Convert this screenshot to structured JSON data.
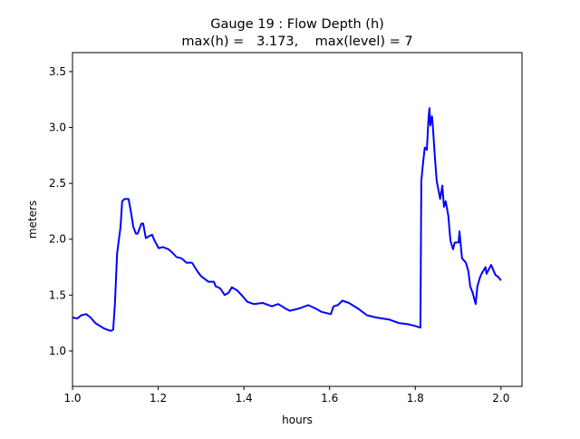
{
  "chart_data": {
    "type": "line",
    "title": "Gauge 19 : Flow Depth (h)",
    "subtitle": "max(h) =   3.173,    max(level) = 7",
    "xlabel": "hours",
    "ylabel": "meters",
    "xlim": [
      1.0,
      2.049
    ],
    "ylim": [
      0.683,
      3.67
    ],
    "xticks": [
      "1.0",
      "1.2",
      "1.4",
      "1.6",
      "1.8",
      "2.0"
    ],
    "yticks": [
      "1.0",
      "1.5",
      "2.0",
      "2.5",
      "3.0",
      "3.5"
    ],
    "grid": false,
    "series": [
      {
        "name": "h",
        "color": "#0000ff",
        "points": [
          [
            1.0,
            1.3
          ],
          [
            1.011,
            1.29
          ],
          [
            1.021,
            1.32
          ],
          [
            1.032,
            1.33
          ],
          [
            1.042,
            1.3
          ],
          [
            1.053,
            1.25
          ],
          [
            1.074,
            1.2
          ],
          [
            1.089,
            1.18
          ],
          [
            1.095,
            1.19
          ],
          [
            1.099,
            1.42
          ],
          [
            1.104,
            1.87
          ],
          [
            1.108,
            1.99
          ],
          [
            1.112,
            2.11
          ],
          [
            1.116,
            2.34
          ],
          [
            1.121,
            2.36
          ],
          [
            1.131,
            2.36
          ],
          [
            1.137,
            2.23
          ],
          [
            1.142,
            2.11
          ],
          [
            1.148,
            2.05
          ],
          [
            1.152,
            2.05
          ],
          [
            1.161,
            2.14
          ],
          [
            1.165,
            2.14
          ],
          [
            1.171,
            2.01
          ],
          [
            1.18,
            2.03
          ],
          [
            1.186,
            2.04
          ],
          [
            1.19,
            2.0
          ],
          [
            1.201,
            1.92
          ],
          [
            1.211,
            1.93
          ],
          [
            1.224,
            1.91
          ],
          [
            1.233,
            1.88
          ],
          [
            1.243,
            1.84
          ],
          [
            1.254,
            1.83
          ],
          [
            1.266,
            1.79
          ],
          [
            1.279,
            1.79
          ],
          [
            1.292,
            1.71
          ],
          [
            1.3,
            1.67
          ],
          [
            1.317,
            1.62
          ],
          [
            1.33,
            1.62
          ],
          [
            1.334,
            1.58
          ],
          [
            1.345,
            1.56
          ],
          [
            1.355,
            1.5
          ],
          [
            1.364,
            1.52
          ],
          [
            1.372,
            1.57
          ],
          [
            1.385,
            1.54
          ],
          [
            1.397,
            1.49
          ],
          [
            1.408,
            1.44
          ],
          [
            1.423,
            1.42
          ],
          [
            1.444,
            1.43
          ],
          [
            1.465,
            1.4
          ],
          [
            1.48,
            1.42
          ],
          [
            1.497,
            1.38
          ],
          [
            1.507,
            1.36
          ],
          [
            1.529,
            1.38
          ],
          [
            1.55,
            1.41
          ],
          [
            1.567,
            1.38
          ],
          [
            1.581,
            1.35
          ],
          [
            1.603,
            1.33
          ],
          [
            1.609,
            1.4
          ],
          [
            1.619,
            1.41
          ],
          [
            1.63,
            1.45
          ],
          [
            1.645,
            1.43
          ],
          [
            1.666,
            1.38
          ],
          [
            1.687,
            1.32
          ],
          [
            1.708,
            1.3
          ],
          [
            1.74,
            1.28
          ],
          [
            1.761,
            1.25
          ],
          [
            1.782,
            1.24
          ],
          [
            1.803,
            1.22
          ],
          [
            1.81,
            1.21
          ],
          [
            1.812,
            1.21
          ],
          [
            1.814,
            2.52
          ],
          [
            1.818,
            2.68
          ],
          [
            1.822,
            2.82
          ],
          [
            1.827,
            2.8
          ],
          [
            1.831,
            3.09
          ],
          [
            1.833,
            3.173
          ],
          [
            1.835,
            3.02
          ],
          [
            1.839,
            3.1
          ],
          [
            1.841,
            3.0
          ],
          [
            1.846,
            2.72
          ],
          [
            1.85,
            2.52
          ],
          [
            1.858,
            2.36
          ],
          [
            1.863,
            2.48
          ],
          [
            1.867,
            2.29
          ],
          [
            1.871,
            2.34
          ],
          [
            1.877,
            2.21
          ],
          [
            1.882,
            1.99
          ],
          [
            1.888,
            1.91
          ],
          [
            1.892,
            1.97
          ],
          [
            1.901,
            1.97
          ],
          [
            1.903,
            2.07
          ],
          [
            1.909,
            1.83
          ],
          [
            1.918,
            1.79
          ],
          [
            1.924,
            1.71
          ],
          [
            1.928,
            1.58
          ],
          [
            1.934,
            1.52
          ],
          [
            1.941,
            1.42
          ],
          [
            1.945,
            1.58
          ],
          [
            1.951,
            1.66
          ],
          [
            1.956,
            1.7
          ],
          [
            1.964,
            1.75
          ],
          [
            1.966,
            1.69
          ],
          [
            1.977,
            1.77
          ],
          [
            1.987,
            1.68
          ],
          [
            1.994,
            1.66
          ],
          [
            2.0,
            1.63
          ]
        ]
      }
    ]
  }
}
